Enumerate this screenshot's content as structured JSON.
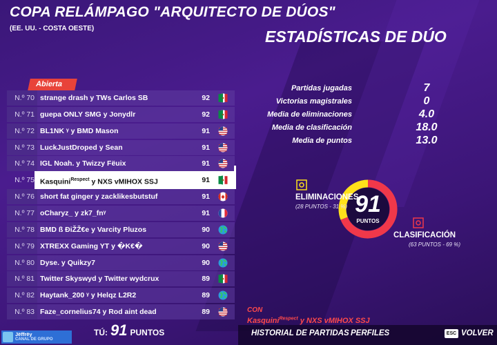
{
  "header": {
    "title": "COPA RELÁMPAGO \"ARQUITECTO DE DÚOS\"",
    "region": "(EE. UU. - COSTA OESTE)",
    "section_title": "ESTADÍSTICAS DE DÚO"
  },
  "leaderboard": {
    "tab": "Abierta",
    "rows": [
      {
        "rank": "N.º 70",
        "team": "strange drash y TWs Carlos SB",
        "points": 92
      },
      {
        "rank": "N.º 71",
        "team": "guepa ONLY SMG y Jonydlr",
        "points": 92
      },
      {
        "rank": "N.º 72",
        "team": "BL1NK ᵞ y BMD Mason",
        "points": 91
      },
      {
        "rank": "N.º 73",
        "team": "LuckJustDroped y Sean",
        "points": 91
      },
      {
        "rank": "N.º 74",
        "team": "IGL Noah. y Twizzy Fëuix",
        "points": 91
      },
      {
        "rank": "N.º 75",
        "team": "Kasquini",
        "team_tag": "Respect",
        "team_rest": " y NXS vMIHOX SSJ",
        "points": 91
      },
      {
        "rank": "N.º 76",
        "team": "short fat ginger y zacklikesbutstuf",
        "points": 91
      },
      {
        "rank": "N.º 77",
        "team": "oCharyz_ y zk7_fnᵞ",
        "points": 91
      },
      {
        "rank": "N.º 78",
        "team": "BMD ß ĐiŽŽ€e y Varcity Pluzos",
        "points": 90
      },
      {
        "rank": "N.º 79",
        "team": "XTREXX Gaming YT y �K€�",
        "points": 90
      },
      {
        "rank": "N.º 80",
        "team": "Dyse. y Quikzy7",
        "points": 90
      },
      {
        "rank": "N.º 81",
        "team": "Twitter Skyswyd y Twitter wydcrux",
        "points": 89
      },
      {
        "rank": "N.º 82",
        "team": "Haytank_200 ᵞ y Helqz L2R2",
        "points": 89
      },
      {
        "rank": "N.º 83",
        "team": "Faze_cornelius74 y Rod aint dead",
        "points": 89
      }
    ],
    "footer": {
      "label": "TÚ:",
      "points": 91,
      "unit": "PUNTOS"
    }
  },
  "stats": [
    {
      "label": "Partidas jugadas",
      "value": "7"
    },
    {
      "label": "Victorias magistrales",
      "value": "0"
    },
    {
      "label": "Media de eliminaciones",
      "value": "4.0"
    },
    {
      "label": "Media de clasificación",
      "value": "18.0"
    },
    {
      "label": "Media de puntos",
      "value": "13.0"
    }
  ],
  "donut": {
    "total": 91,
    "unit": "PUNTOS",
    "segments": [
      {
        "label": "ELIMINACIONES",
        "color": "#ffe11a",
        "detail": [
          "(",
          28,
          " PUNTOS - ",
          31,
          " %)"
        ]
      },
      {
        "label": "CLASIFICACIÓN",
        "color": "#f0384a",
        "detail": [
          "(",
          63,
          " PUNTOS - ",
          69,
          " %)"
        ]
      }
    ]
  },
  "partner": {
    "prefix": "CON",
    "name": "Kasquini",
    "tag": "Respect",
    "rest": " y NXS vMIHOX SSJ"
  },
  "nav": {
    "items": [
      "HISTORIAL DE PARTIDAS",
      "PERFILES"
    ],
    "key": "ESC",
    "back": "VOLVER"
  },
  "player": {
    "name": "Jëffrëy",
    "status": "CANAL DE GRUPO"
  }
}
